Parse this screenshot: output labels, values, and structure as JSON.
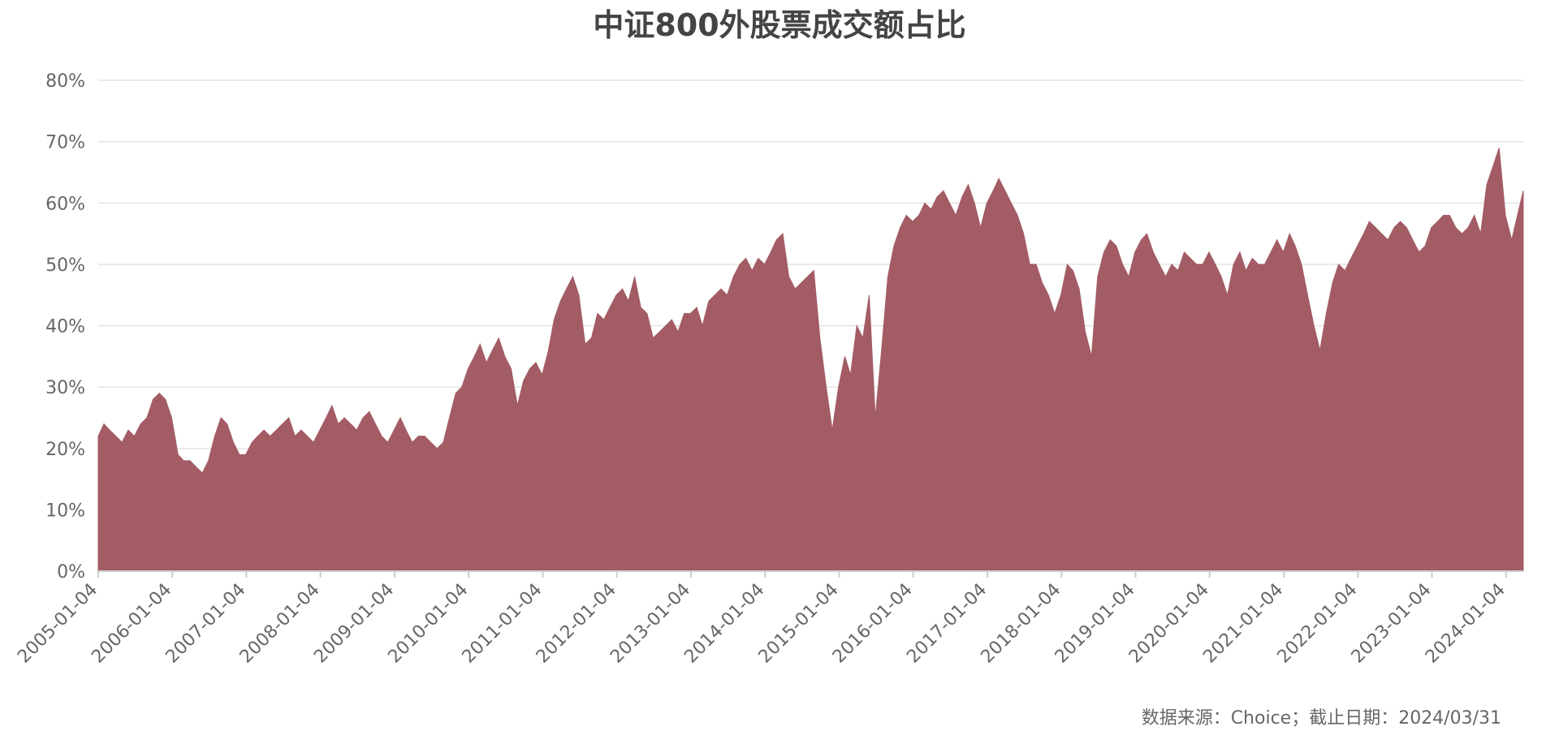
{
  "chart_data": {
    "type": "area",
    "title": "中证800外股票成交额占比",
    "source": "数据来源：Choice；截止日期：2024/03/31",
    "color": "#a35c64",
    "grid": true,
    "xlim": [
      "2005-01-04",
      "2024-03-29"
    ],
    "xticks": [
      "2005-01-04",
      "2006-01-04",
      "2007-01-04",
      "2008-01-04",
      "2009-01-04",
      "2010-01-04",
      "2011-01-04",
      "2012-01-04",
      "2013-01-04",
      "2014-01-04",
      "2015-01-04",
      "2016-01-04",
      "2017-01-04",
      "2018-01-04",
      "2019-01-04",
      "2020-01-04",
      "2021-01-04",
      "2022-01-04",
      "2023-01-04",
      "2024-01-04"
    ],
    "ylim": [
      0,
      80
    ],
    "yticks": [
      {
        "value": 0,
        "label": "0%"
      },
      {
        "value": 10,
        "label": "10%"
      },
      {
        "value": 20,
        "label": "20%"
      },
      {
        "value": 30,
        "label": "30%"
      },
      {
        "value": 40,
        "label": "40%"
      },
      {
        "value": 50,
        "label": "50%"
      },
      {
        "value": 60,
        "label": "60%"
      },
      {
        "value": 70,
        "label": "70%"
      },
      {
        "value": 80,
        "label": "80%"
      }
    ],
    "x": [
      "2005-01-04",
      "2005-02-01",
      "2005-03-01",
      "2005-04-01",
      "2005-05-01",
      "2005-06-01",
      "2005-07-01",
      "2005-08-01",
      "2005-09-01",
      "2005-10-01",
      "2005-11-01",
      "2005-12-01",
      "2006-01-01",
      "2006-02-01",
      "2006-03-01",
      "2006-04-01",
      "2006-05-01",
      "2006-06-01",
      "2006-07-01",
      "2006-08-01",
      "2006-09-01",
      "2006-10-01",
      "2006-11-01",
      "2006-12-01",
      "2007-01-01",
      "2007-02-01",
      "2007-03-01",
      "2007-04-01",
      "2007-05-01",
      "2007-06-01",
      "2007-07-01",
      "2007-08-01",
      "2007-09-01",
      "2007-10-01",
      "2007-11-01",
      "2007-12-01",
      "2008-01-01",
      "2008-02-01",
      "2008-03-01",
      "2008-04-01",
      "2008-05-01",
      "2008-06-01",
      "2008-07-01",
      "2008-08-01",
      "2008-09-01",
      "2008-10-01",
      "2008-11-01",
      "2008-12-01",
      "2009-01-01",
      "2009-02-01",
      "2009-03-01",
      "2009-04-01",
      "2009-05-01",
      "2009-06-01",
      "2009-07-01",
      "2009-08-01",
      "2009-09-01",
      "2009-10-01",
      "2009-11-01",
      "2009-12-01",
      "2010-01-01",
      "2010-02-01",
      "2010-03-01",
      "2010-04-01",
      "2010-05-01",
      "2010-06-01",
      "2010-07-01",
      "2010-08-01",
      "2010-09-01",
      "2010-10-01",
      "2010-11-01",
      "2010-12-01",
      "2011-01-01",
      "2011-02-01",
      "2011-03-01",
      "2011-04-01",
      "2011-05-01",
      "2011-06-01",
      "2011-07-01",
      "2011-08-01",
      "2011-09-01",
      "2011-10-01",
      "2011-11-01",
      "2011-12-01",
      "2012-01-01",
      "2012-02-01",
      "2012-03-01",
      "2012-04-01",
      "2012-05-01",
      "2012-06-01",
      "2012-07-01",
      "2012-08-01",
      "2012-09-01",
      "2012-10-01",
      "2012-11-01",
      "2012-12-01",
      "2013-01-01",
      "2013-02-01",
      "2013-03-01",
      "2013-04-01",
      "2013-05-01",
      "2013-06-01",
      "2013-07-01",
      "2013-08-01",
      "2013-09-01",
      "2013-10-01",
      "2013-11-01",
      "2013-12-01",
      "2014-01-01",
      "2014-02-01",
      "2014-03-01",
      "2014-04-01",
      "2014-05-01",
      "2014-06-01",
      "2014-07-01",
      "2014-08-01",
      "2014-09-01",
      "2014-10-01",
      "2014-11-01",
      "2014-12-01",
      "2015-01-01",
      "2015-02-01",
      "2015-03-01",
      "2015-04-01",
      "2015-05-01",
      "2015-06-01",
      "2015-07-01",
      "2015-08-01",
      "2015-09-01",
      "2015-10-01",
      "2015-11-01",
      "2015-12-01",
      "2016-01-01",
      "2016-02-01",
      "2016-03-01",
      "2016-04-01",
      "2016-05-01",
      "2016-06-01",
      "2016-07-01",
      "2016-08-01",
      "2016-09-01",
      "2016-10-01",
      "2016-11-01",
      "2016-12-01",
      "2017-01-01",
      "2017-02-01",
      "2017-03-01",
      "2017-04-01",
      "2017-05-01",
      "2017-06-01",
      "2017-07-01",
      "2017-08-01",
      "2017-09-01",
      "2017-10-01",
      "2017-11-01",
      "2017-12-01",
      "2018-01-01",
      "2018-02-01",
      "2018-03-01",
      "2018-04-01",
      "2018-05-01",
      "2018-06-01",
      "2018-07-01",
      "2018-08-01",
      "2018-09-01",
      "2018-10-01",
      "2018-11-01",
      "2018-12-01",
      "2019-01-01",
      "2019-02-01",
      "2019-03-01",
      "2019-04-01",
      "2019-05-01",
      "2019-06-01",
      "2019-07-01",
      "2019-08-01",
      "2019-09-01",
      "2019-10-01",
      "2019-11-01",
      "2019-12-01",
      "2020-01-01",
      "2020-02-01",
      "2020-03-01",
      "2020-04-01",
      "2020-05-01",
      "2020-06-01",
      "2020-07-01",
      "2020-08-01",
      "2020-09-01",
      "2020-10-01",
      "2020-11-01",
      "2020-12-01",
      "2021-01-01",
      "2021-02-01",
      "2021-03-01",
      "2021-04-01",
      "2021-05-01",
      "2021-06-01",
      "2021-07-01",
      "2021-08-01",
      "2021-09-01",
      "2021-10-01",
      "2021-11-01",
      "2021-12-01",
      "2022-01-01",
      "2022-02-01",
      "2022-03-01",
      "2022-04-01",
      "2022-05-01",
      "2022-06-01",
      "2022-07-01",
      "2022-08-01",
      "2022-09-01",
      "2022-10-01",
      "2022-11-01",
      "2022-12-01",
      "2023-01-01",
      "2023-02-01",
      "2023-03-01",
      "2023-04-01",
      "2023-05-01",
      "2023-06-01",
      "2023-07-01",
      "2023-08-01",
      "2023-09-01",
      "2023-10-01",
      "2023-11-01",
      "2023-12-01",
      "2024-01-01",
      "2024-02-01",
      "2024-03-29"
    ],
    "values": [
      22,
      24,
      23,
      22,
      21,
      23,
      22,
      24,
      25,
      28,
      29,
      28,
      25,
      19,
      18,
      18,
      17,
      16,
      18,
      22,
      25,
      24,
      21,
      19,
      19,
      21,
      22,
      23,
      22,
      23,
      24,
      25,
      22,
      23,
      22,
      21,
      23,
      25,
      27,
      24,
      25,
      24,
      23,
      25,
      26,
      24,
      22,
      21,
      23,
      25,
      23,
      21,
      22,
      22,
      21,
      20,
      21,
      25,
      29,
      30,
      33,
      35,
      37,
      34,
      36,
      38,
      35,
      33,
      27,
      31,
      33,
      34,
      32,
      36,
      41,
      44,
      46,
      48,
      45,
      37,
      38,
      42,
      41,
      43,
      45,
      46,
      44,
      48,
      43,
      42,
      38,
      39,
      40,
      41,
      39,
      42,
      42,
      43,
      40,
      44,
      45,
      46,
      45,
      48,
      50,
      51,
      49,
      51,
      50,
      52,
      54,
      55,
      48,
      46,
      47,
      48,
      49,
      38,
      30,
      23,
      30,
      35,
      32,
      40,
      38,
      45,
      25,
      36,
      48,
      53,
      56,
      58,
      57,
      58,
      60,
      59,
      61,
      62,
      60,
      58,
      61,
      63,
      60,
      56,
      60,
      62,
      64,
      62,
      60,
      58,
      55,
      50,
      50,
      47,
      45,
      42,
      45,
      50,
      49,
      46,
      39,
      35,
      48,
      52,
      54,
      53,
      50,
      48,
      52,
      54,
      55,
      52,
      50,
      48,
      50,
      49,
      52,
      51,
      50,
      50,
      52,
      50,
      48,
      45,
      50,
      52,
      49,
      51,
      50,
      50,
      52,
      54,
      52,
      55,
      53,
      50,
      45,
      40,
      36,
      42,
      47,
      50,
      49,
      51,
      53,
      55,
      57,
      56,
      55,
      54,
      56,
      57,
      56,
      54,
      52,
      53,
      56,
      57,
      58,
      58,
      56,
      55,
      56,
      58,
      55,
      63,
      66,
      69,
      58,
      54,
      62
    ]
  }
}
